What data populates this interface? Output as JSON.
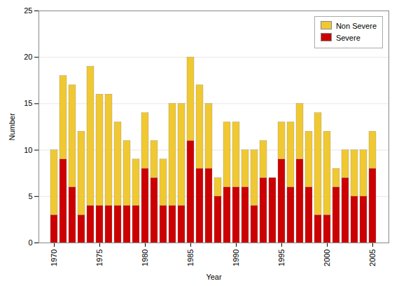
{
  "chart_data": {
    "type": "bar",
    "stacked": true,
    "categories": [
      "1970",
      null,
      null,
      null,
      null,
      "1975",
      null,
      null,
      null,
      null,
      "1980",
      null,
      null,
      null,
      null,
      "1985",
      null,
      null,
      null,
      null,
      "1990",
      null,
      null,
      null,
      null,
      "1995",
      null,
      null,
      null,
      null,
      "2000",
      null,
      null,
      null,
      null,
      "2005"
    ],
    "series": [
      {
        "name": "Severe",
        "color": "#cc0000",
        "values": [
          3,
          9,
          6,
          3,
          4,
          4,
          4,
          4,
          4,
          4,
          8,
          7,
          4,
          4,
          4,
          11,
          8,
          8,
          5,
          6,
          6,
          6,
          4,
          7,
          7,
          9,
          6,
          9,
          6,
          3,
          3,
          6,
          7,
          5,
          5,
          8
        ]
      },
      {
        "name": "Non Severe",
        "color": "#f0c832",
        "values": [
          7,
          9,
          11,
          9,
          15,
          12,
          12,
          9,
          7,
          5,
          6,
          4,
          5,
          11,
          11,
          9,
          9,
          7,
          2,
          7,
          7,
          4,
          6,
          4,
          0,
          4,
          7,
          6,
          6,
          11,
          9,
          2,
          3,
          5,
          5,
          4
        ]
      }
    ],
    "xlabel": "Year",
    "ylabel": "Number",
    "ylim": [
      0,
      25
    ],
    "yticks": [
      0,
      5,
      10,
      15,
      20,
      25
    ],
    "grid": true,
    "legend": "upper right"
  }
}
